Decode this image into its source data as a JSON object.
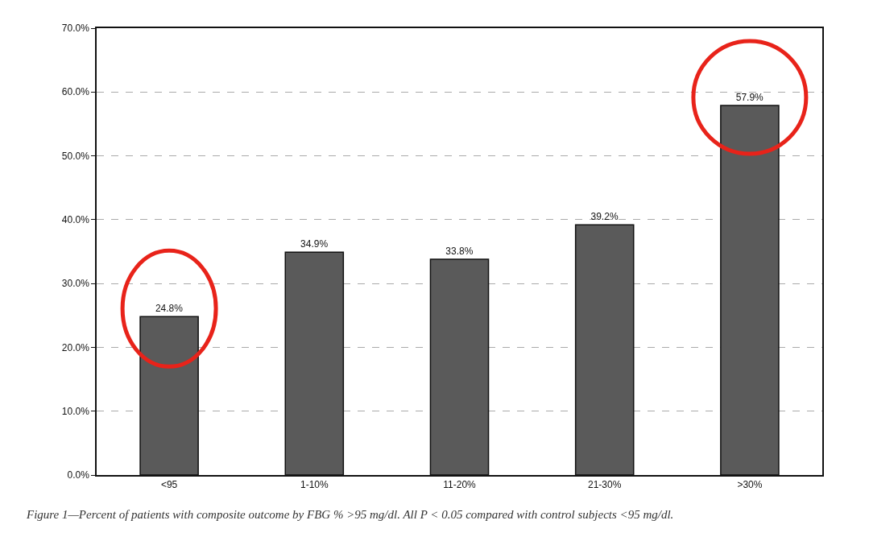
{
  "chart_data": {
    "type": "bar",
    "categories": [
      "<95",
      "1-10%",
      "11-20%",
      "21-30%",
      ">30%"
    ],
    "values": [
      24.8,
      34.9,
      33.8,
      39.2,
      57.9
    ],
    "value_labels": [
      "24.8%",
      "34.9%",
      "33.8%",
      "39.2%",
      "57.9%"
    ],
    "color": "#5a5a5a",
    "ylim": [
      0,
      70
    ],
    "yticks": [
      {
        "value": 0,
        "label": "0.0%"
      },
      {
        "value": 10,
        "label": "10.0%"
      },
      {
        "value": 20,
        "label": "20.0%"
      },
      {
        "value": 30,
        "label": "30.0%"
      },
      {
        "value": 40,
        "label": "40.0%"
      },
      {
        "value": 50,
        "label": "50.0%"
      },
      {
        "value": 60,
        "label": "60.0%"
      },
      {
        "value": 70,
        "label": "70.0%"
      }
    ],
    "grid": "y",
    "annotations": [
      "Figure 1—Percent of patients with composite outcome by FBG % >95 mg/dl. All P < 0.05 compared with control subjects <95 mg/dl."
    ]
  }
}
